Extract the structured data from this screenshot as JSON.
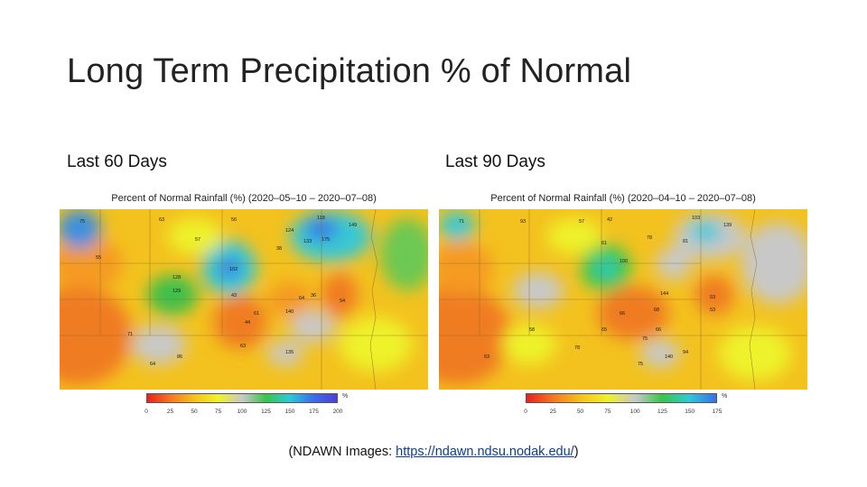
{
  "slide": {
    "title": "Long Term Precipitation % of Normal",
    "source_prefix": "(NDAWN Images: ",
    "source_link": "https://ndawn.ndsu.nodak.edu/",
    "source_suffix": ")"
  },
  "panels": [
    {
      "label": "Last 60 Days",
      "map_title": "Percent of Normal Rainfall (%) (2020–05–10 – 2020–07–08)",
      "legend_unit": "%",
      "legend_ticks": [
        "0",
        "25",
        "50",
        "75",
        "100",
        "125",
        "150",
        "175",
        "200"
      ],
      "legend_colors": [
        "#e8201e",
        "#f57a20",
        "#f6c21c",
        "#eef22a",
        "#c8c8c8",
        "#38c64a",
        "#2ec9d8",
        "#3a6fe8",
        "#4d3fd8"
      ],
      "station_values": [
        "75",
        "63",
        "56",
        "118",
        "149",
        "124",
        "57",
        "38",
        "133",
        "175",
        "102",
        "128",
        "129",
        "55",
        "43",
        "64",
        "61",
        "44",
        "140",
        "36",
        "54",
        "135",
        "71",
        "86",
        "63",
        "64"
      ]
    },
    {
      "label": "Last 90 Days",
      "map_title": "Percent of Normal Rainfall (%) (2020–04–10 – 2020–07–08)",
      "legend_unit": "%",
      "legend_ticks": [
        "0",
        "25",
        "50",
        "75",
        "100",
        "125",
        "150",
        "175"
      ],
      "legend_colors": [
        "#e8201e",
        "#f57a20",
        "#f6c21c",
        "#eef22a",
        "#c8c8c8",
        "#38c64a",
        "#2ec9d8",
        "#3a6fe8"
      ],
      "station_values": [
        "71",
        "93",
        "57",
        "42",
        "103",
        "139",
        "81",
        "78",
        "61",
        "100",
        "144",
        "53",
        "53",
        "66",
        "68",
        "66",
        "65",
        "75",
        "140",
        "58",
        "78",
        "94",
        "63",
        "75"
      ]
    }
  ]
}
